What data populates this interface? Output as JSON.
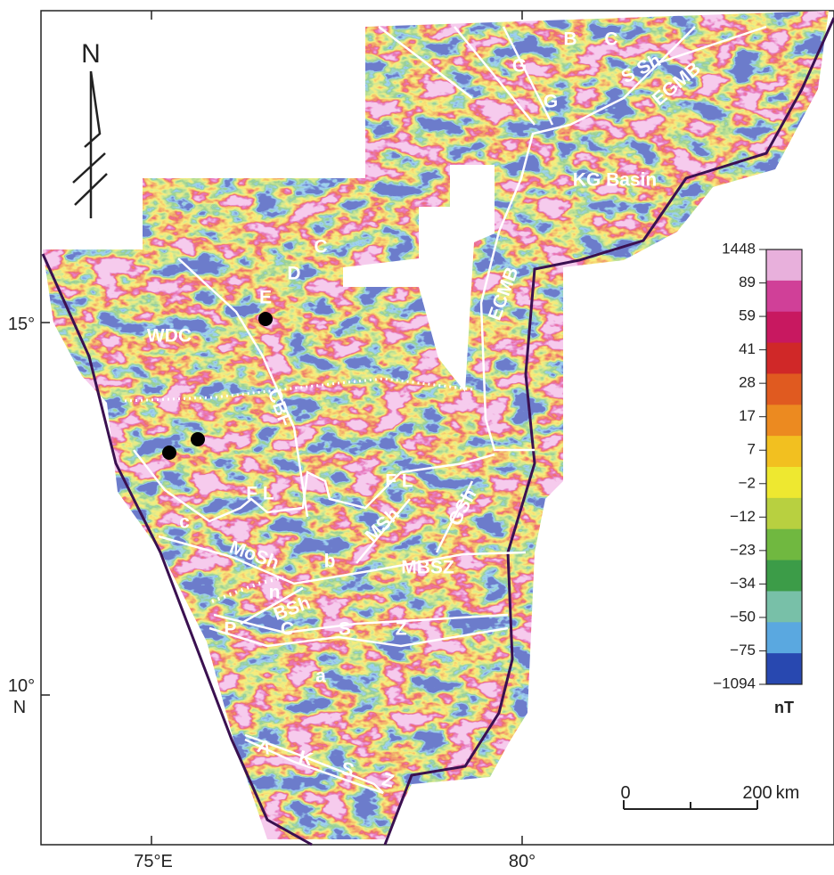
{
  "map": {
    "north": "N",
    "lat_labels": [
      "15°",
      "10°"
    ],
    "lat_suffix": "N",
    "lon_labels": [
      "75°E",
      "80°"
    ],
    "features": [
      "B",
      "C",
      "G",
      "G",
      "S Sh",
      "EGMB",
      "KG Basin",
      "C",
      "D",
      "E",
      "WDC",
      "ECMB",
      "CBF",
      "F L",
      "F L",
      "c",
      "MoSh",
      "MSh",
      "GSh",
      "b",
      "MBSZ",
      "n",
      "BSh",
      "P C S Z",
      "a",
      "A K S Z"
    ],
    "scale_bar": {
      "start": "0",
      "end": "200",
      "unit": "km"
    }
  },
  "colorbar": {
    "labels": [
      "1448",
      "89",
      "59",
      "41",
      "28",
      "17",
      "7",
      "−2",
      "−12",
      "−23",
      "−34",
      "−50",
      "−75",
      "−1094"
    ],
    "unit": "nT",
    "colors": [
      "#e8b0dc",
      "#d04098",
      "#c81860",
      "#d02828",
      "#e05a20",
      "#ec8a20",
      "#f2c020",
      "#eee830",
      "#b8d040",
      "#70b840",
      "#3c9c48",
      "#78c0a8",
      "#5aa8e0",
      "#2848b0"
    ]
  }
}
